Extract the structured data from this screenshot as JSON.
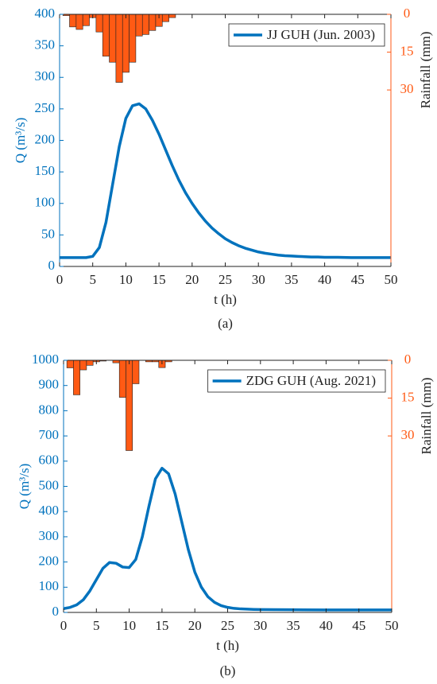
{
  "chart_data": [
    {
      "type": "combo",
      "caption": "(a)",
      "xlabel": "t (h)",
      "ylabel": "Q (m³/s)",
      "y2label": "Rainfall (mm)",
      "xlim": [
        0,
        50
      ],
      "xticks": [
        0,
        5,
        10,
        15,
        20,
        25,
        30,
        35,
        40,
        45,
        50
      ],
      "ylim": [
        0,
        400
      ],
      "yticks": [
        0,
        50,
        100,
        150,
        200,
        250,
        300,
        350,
        400
      ],
      "y2lim": [
        0,
        100
      ],
      "y2ticks": [
        0,
        15,
        30
      ],
      "y2_inverted": true,
      "legend": "upper right",
      "series": [
        {
          "type": "bar",
          "axis": "y2",
          "color": "#ff5a14",
          "x": [
            1,
            2,
            3,
            4,
            5,
            6,
            7,
            8,
            9,
            10,
            11,
            12,
            13,
            14,
            15,
            16,
            17
          ],
          "values": [
            0.5,
            5,
            6,
            4.5,
            1.3,
            7,
            16.6,
            19,
            27,
            23,
            19,
            8.6,
            8,
            6.4,
            4.8,
            2.9,
            1.3
          ]
        },
        {
          "type": "line",
          "axis": "y",
          "name": "JJ GUH (Jun. 2003)",
          "color": "#0072bd",
          "x": [
            0,
            1,
            2,
            3,
            4,
            5,
            6,
            7,
            8,
            9,
            10,
            11,
            12,
            13,
            14,
            15,
            16,
            17,
            18,
            19,
            20,
            21,
            22,
            23,
            24,
            25,
            26,
            27,
            28,
            29,
            30,
            31,
            32,
            33,
            34,
            35,
            36,
            37,
            38,
            39,
            40,
            42,
            44,
            46,
            48,
            50
          ],
          "values": [
            14,
            14,
            14,
            14,
            14,
            16,
            30,
            70,
            130,
            190,
            235,
            255,
            258,
            250,
            232,
            210,
            185,
            160,
            137,
            117,
            100,
            85,
            72,
            61,
            52,
            44,
            38,
            33,
            29,
            26,
            23,
            21,
            19.5,
            18,
            17,
            16.5,
            16,
            15.5,
            15,
            15,
            14.5,
            14.5,
            14,
            14,
            14,
            14
          ]
        }
      ]
    },
    {
      "type": "combo",
      "caption": "(b)",
      "xlabel": "t (h)",
      "ylabel": "Q (m³/s)",
      "y2label": "Rainfall (mm)",
      "xlim": [
        0,
        50
      ],
      "xticks": [
        0,
        5,
        10,
        15,
        20,
        25,
        30,
        35,
        40,
        45,
        50
      ],
      "ylim": [
        0,
        1000
      ],
      "yticks": [
        0,
        100,
        200,
        300,
        400,
        500,
        600,
        700,
        800,
        900,
        1000
      ],
      "y2lim": [
        0,
        100
      ],
      "y2ticks": [
        0,
        15,
        30
      ],
      "y2_inverted": true,
      "legend": "upper right",
      "series": [
        {
          "type": "bar",
          "axis": "y2",
          "color": "#ff5a14",
          "x": [
            1,
            2,
            3,
            4,
            5,
            6,
            7,
            8,
            9,
            10,
            11,
            12,
            13,
            14,
            15,
            16
          ],
          "values": [
            3,
            13.7,
            3.8,
            2,
            0.6,
            0.3,
            0,
            1,
            14.7,
            35.8,
            9.3,
            0,
            0.6,
            0.6,
            2.9,
            0.6
          ]
        },
        {
          "type": "line",
          "axis": "y",
          "name": "ZDG GUH (Aug. 2021)",
          "color": "#0072bd",
          "x": [
            0,
            1,
            2,
            3,
            4,
            5,
            6,
            7,
            8,
            9,
            10,
            11,
            12,
            13,
            14,
            15,
            16,
            17,
            18,
            19,
            20,
            21,
            22,
            23,
            24,
            25,
            26,
            27,
            28,
            29,
            30,
            32,
            35,
            40,
            45,
            50
          ],
          "values": [
            15,
            20,
            30,
            50,
            85,
            130,
            175,
            198,
            195,
            180,
            178,
            210,
            300,
            420,
            530,
            572,
            550,
            470,
            360,
            250,
            160,
            100,
            62,
            40,
            27,
            20,
            16,
            14,
            13,
            12,
            11.5,
            11,
            10.5,
            10,
            10,
            10
          ]
        }
      ]
    }
  ]
}
